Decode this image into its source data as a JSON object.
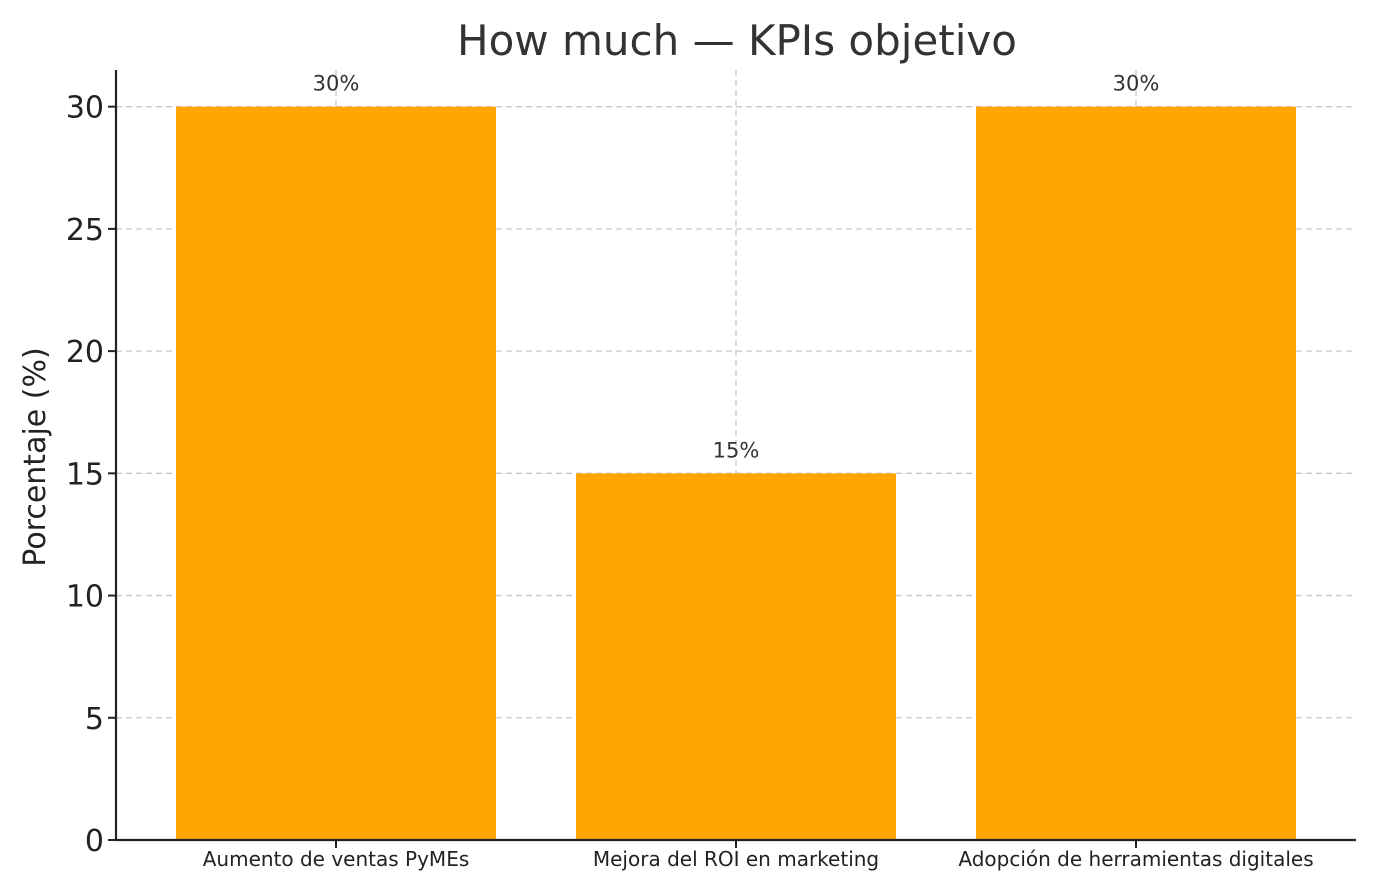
{
  "chart_data": {
    "type": "bar",
    "title": "How much — KPIs objetivo",
    "xlabel": "",
    "ylabel": "Porcentaje (%)",
    "categories": [
      "Aumento de ventas PyMEs",
      "Mejora del ROI en marketing",
      "Adopción de herramientas digitales"
    ],
    "values": [
      30,
      15,
      30
    ],
    "data_labels": [
      "30%",
      "15%",
      "30%"
    ],
    "ylim": [
      0,
      31.5
    ],
    "yticks": [
      0,
      5,
      10,
      15,
      20,
      25,
      30
    ],
    "grid": true,
    "legend": "none",
    "bar_color": "#FFA500"
  }
}
